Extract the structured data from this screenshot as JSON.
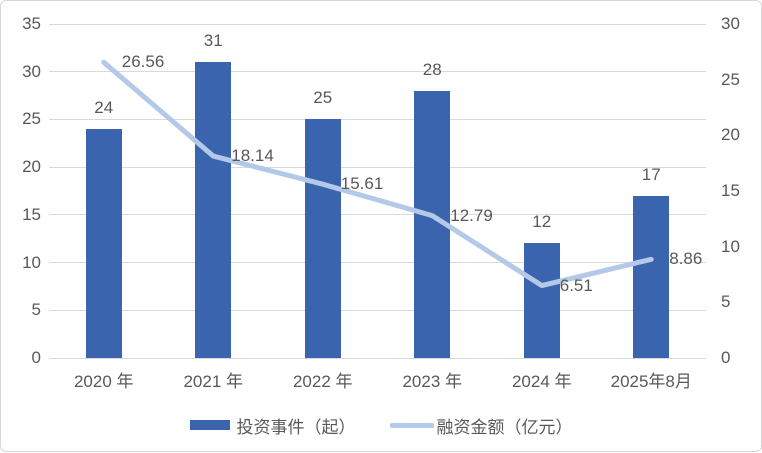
{
  "chart_data": {
    "type": "bar",
    "subtype": "combo-bar-line",
    "categories": [
      "2020 年",
      "2021 年",
      "2022 年",
      "2023 年",
      "2024 年",
      "2025年8月"
    ],
    "series": [
      {
        "name": "投资事件（起）",
        "kind": "bar",
        "axis": "left",
        "values": [
          24,
          31,
          25,
          28,
          12,
          17
        ],
        "labels": [
          "24",
          "31",
          "25",
          "28",
          "12",
          "17"
        ]
      },
      {
        "name": "融资金额（亿元）",
        "kind": "line",
        "axis": "right",
        "values": [
          26.56,
          18.14,
          15.61,
          12.79,
          6.51,
          8.86
        ],
        "labels": [
          "26.56",
          "18.14",
          "15.61",
          "12.79",
          "6.51",
          "8.86"
        ]
      }
    ],
    "title": "",
    "xlabel": "",
    "ylabel": "",
    "left_axis": {
      "min": 0,
      "max": 35,
      "step": 5,
      "ticks": [
        "0",
        "5",
        "10",
        "15",
        "20",
        "25",
        "30",
        "35"
      ]
    },
    "right_axis": {
      "min": 0,
      "max": 30,
      "step": 5,
      "ticks": [
        "0",
        "5",
        "10",
        "15",
        "20",
        "25",
        "30"
      ]
    },
    "grid": true,
    "legend_position": "bottom",
    "colors": {
      "bar": "#3a64ae",
      "line": "#b4c9e8",
      "grid": "#d9d9d9",
      "text": "#595959",
      "border": "#d7d7d7",
      "background": "#ffffff"
    }
  }
}
